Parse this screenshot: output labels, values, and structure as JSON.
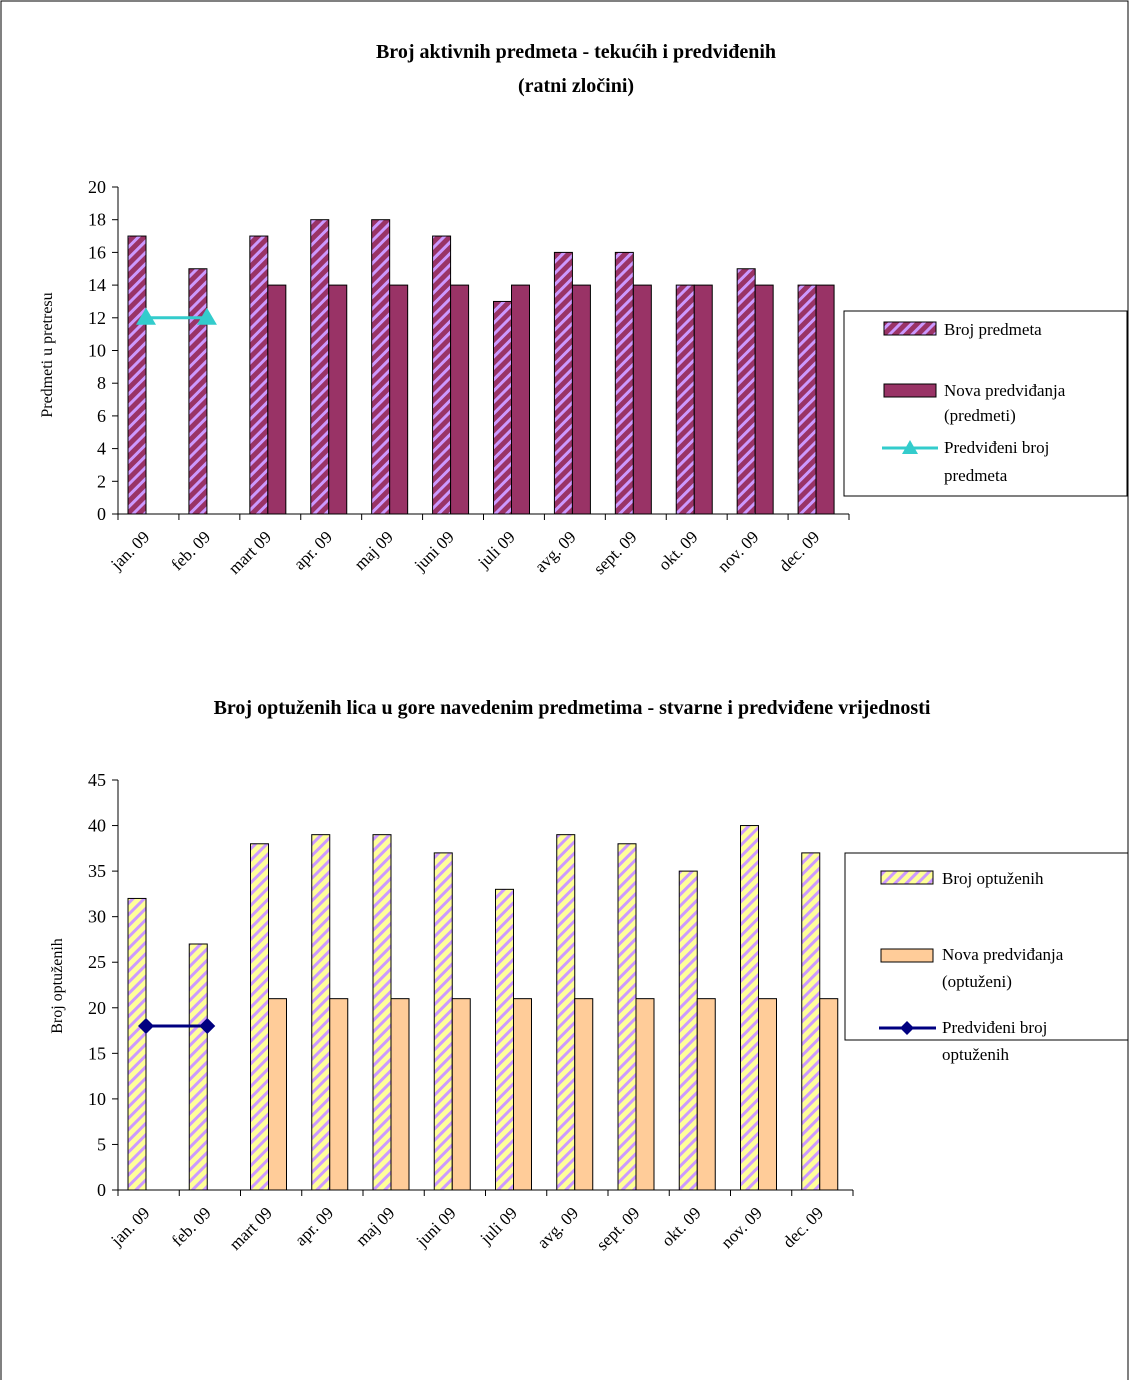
{
  "colors": {
    "purple_bar": "#993366",
    "purple_stripe": "#cc99ff",
    "cyan_line": "#33cccc",
    "yellow_bar": "#ffff99",
    "lavender_stripe": "#cc99ff",
    "peach_bar": "#ffcc99",
    "navy_line": "#000080"
  },
  "chart_data": [
    {
      "type": "bar",
      "title": "Broj aktivnih predmeta - tekućih i predviđenih",
      "subtitle": "(ratni zločini)",
      "xlabel": "",
      "ylabel": "Predmeti u pretresu",
      "ylim": [
        0,
        20
      ],
      "yticks": [
        "0",
        "2",
        "4",
        "6",
        "8",
        "10",
        "12",
        "14",
        "16",
        "18",
        "20"
      ],
      "categories": [
        "jan. 09",
        "feb. 09",
        "mart 09",
        "apr. 09",
        "maj 09",
        "juni 09",
        "juli 09",
        "avg. 09",
        "sept. 09",
        "okt. 09",
        "nov. 09",
        "dec. 09"
      ],
      "series": [
        {
          "name": "Broj predmeta",
          "kind": "bar",
          "pattern": "striped",
          "values": [
            17,
            15,
            17,
            18,
            18,
            17,
            13,
            16,
            16,
            14,
            15,
            14
          ]
        },
        {
          "name": "Nova predviđanja (predmeti)",
          "kind": "bar",
          "pattern": "solid",
          "values": [
            null,
            null,
            14,
            14,
            14,
            14,
            14,
            14,
            14,
            14,
            14,
            14
          ]
        },
        {
          "name": "Predviđeni broj predmeta",
          "kind": "line",
          "marker": "triangle",
          "values": [
            12,
            12,
            null,
            null,
            null,
            null,
            null,
            null,
            null,
            null,
            null,
            null
          ]
        }
      ],
      "legend": {
        "position": "right",
        "entries": [
          {
            "lines": [
              "Broj predmeta"
            ]
          },
          {
            "lines": [
              "Nova predviđanja",
              "(predmeti)"
            ]
          },
          {
            "lines": [
              "Predviđeni broj",
              "predmeta"
            ]
          }
        ]
      },
      "grid": false
    },
    {
      "type": "bar",
      "title": "Broj optuženih lica u gore navedenim predmetima - stvarne i predviđene vrijednosti",
      "subtitle": "",
      "xlabel": "",
      "ylabel": "Broj optuženih",
      "ylim": [
        0,
        45
      ],
      "yticks": [
        "0",
        "5",
        "10",
        "15",
        "20",
        "25",
        "30",
        "35",
        "40",
        "45"
      ],
      "categories": [
        "jan. 09",
        "feb. 09",
        "mart 09",
        "apr. 09",
        "maj 09",
        "juni 09",
        "juli 09",
        "avg. 09",
        "sept. 09",
        "okt. 09",
        "nov. 09",
        "dec. 09"
      ],
      "series": [
        {
          "name": "Broj optuženih",
          "kind": "bar",
          "pattern": "striped",
          "values": [
            32,
            27,
            38,
            39,
            39,
            37,
            33,
            39,
            38,
            35,
            40,
            37
          ]
        },
        {
          "name": "Nova predviđanja (optuženi)",
          "kind": "bar",
          "pattern": "solid",
          "values": [
            null,
            null,
            21,
            21,
            21,
            21,
            21,
            21,
            21,
            21,
            21,
            21
          ]
        },
        {
          "name": "Predviđeni broj optuženih",
          "kind": "line",
          "marker": "diamond",
          "values": [
            18,
            18,
            null,
            null,
            null,
            null,
            null,
            null,
            null,
            null,
            null,
            null
          ]
        }
      ],
      "legend": {
        "position": "right",
        "entries": [
          {
            "lines": [
              "Broj optuženih"
            ]
          },
          {
            "lines": [
              "Nova predviđanja",
              "(optuženi)"
            ]
          },
          {
            "lines": [
              "Predviđeni broj",
              "optuženih"
            ]
          }
        ]
      },
      "grid": false
    }
  ]
}
